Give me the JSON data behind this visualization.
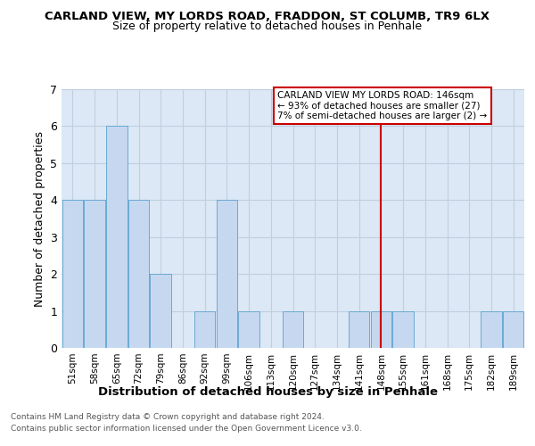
{
  "title": "CARLAND VIEW, MY LORDS ROAD, FRADDON, ST COLUMB, TR9 6LX",
  "subtitle": "Size of property relative to detached houses in Penhale",
  "xlabel": "Distribution of detached houses by size in Penhale",
  "ylabel": "Number of detached properties",
  "categories": [
    "51sqm",
    "58sqm",
    "65sqm",
    "72sqm",
    "79sqm",
    "86sqm",
    "92sqm",
    "99sqm",
    "106sqm",
    "113sqm",
    "120sqm",
    "127sqm",
    "134sqm",
    "141sqm",
    "148sqm",
    "155sqm",
    "161sqm",
    "168sqm",
    "175sqm",
    "182sqm",
    "189sqm"
  ],
  "values": [
    4,
    4,
    6,
    4,
    2,
    0,
    1,
    4,
    1,
    0,
    1,
    0,
    0,
    1,
    1,
    1,
    0,
    0,
    0,
    1,
    1
  ],
  "bar_color": "#c5d8ef",
  "bar_edge_color": "#6aaad4",
  "grid_color": "#c0cfe0",
  "background_color": "#dce8f5",
  "vline_x_index": 14,
  "vline_color": "#cc0000",
  "annotation_title": "CARLAND VIEW MY LORDS ROAD: 146sqm",
  "annotation_line1": "← 93% of detached houses are smaller (27)",
  "annotation_line2": "7% of semi-detached houses are larger (2) →",
  "footnote1": "Contains HM Land Registry data © Crown copyright and database right 2024.",
  "footnote2": "Contains public sector information licensed under the Open Government Licence v3.0.",
  "ylim": [
    0,
    7
  ],
  "yticks": [
    0,
    1,
    2,
    3,
    4,
    5,
    6,
    7
  ]
}
